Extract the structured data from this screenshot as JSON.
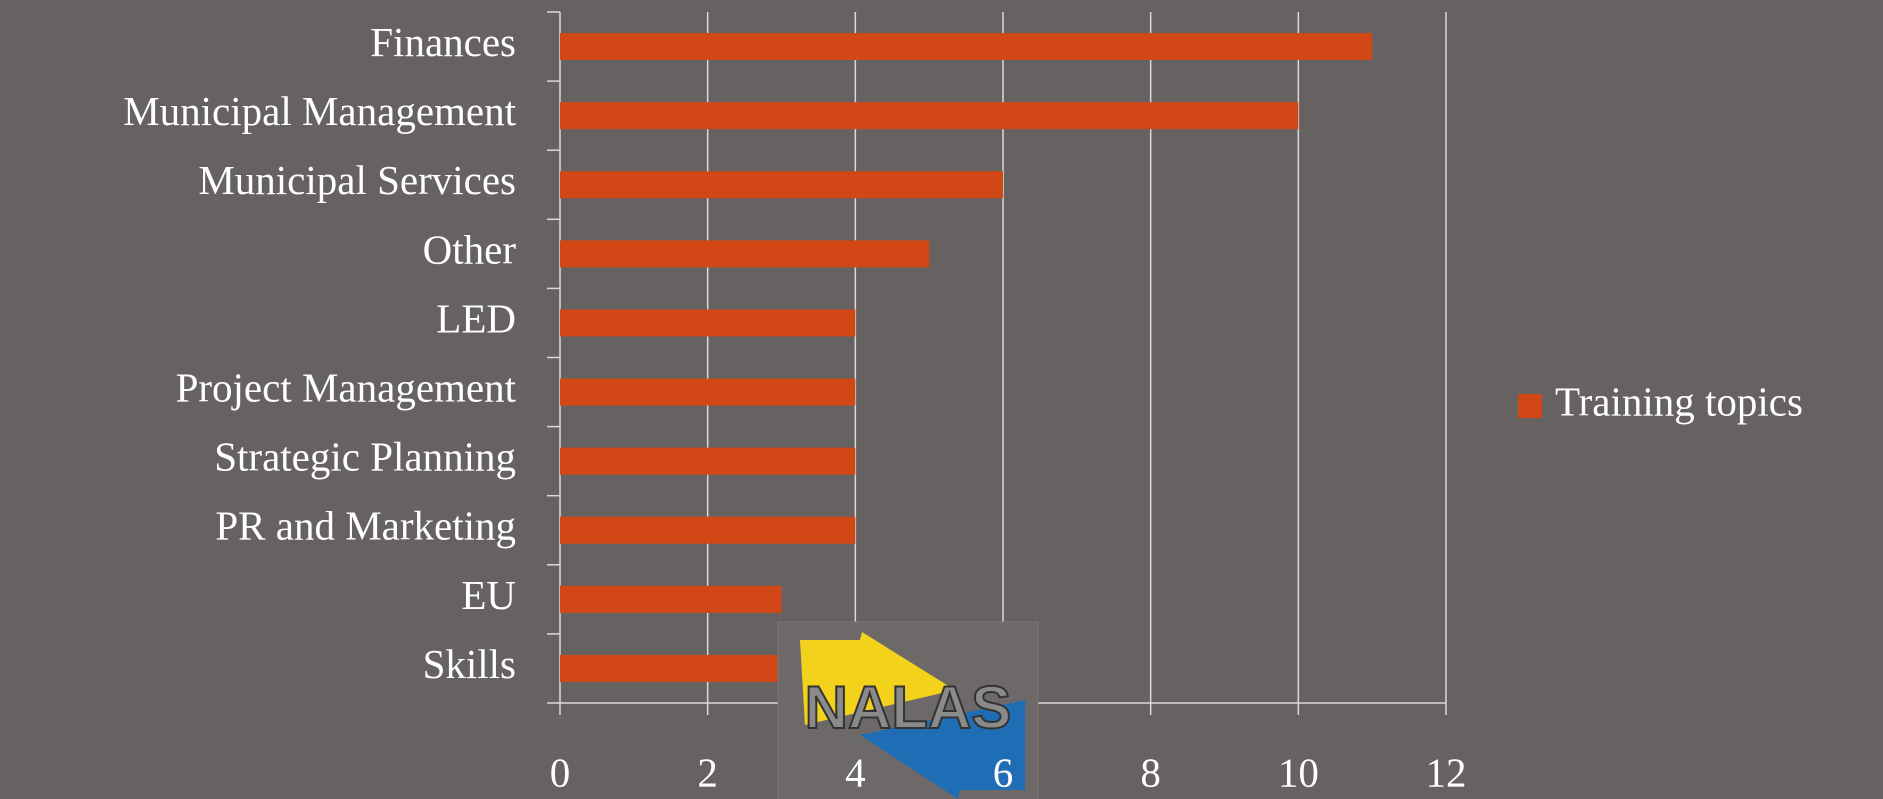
{
  "chart_data": {
    "type": "bar",
    "orientation": "horizontal",
    "categories": [
      "Finances",
      "Municipal Management",
      "Municipal Services",
      "Other",
      "LED",
      "Project Management",
      "Strategic Planning",
      "PR and Marketing",
      "EU",
      "Skills"
    ],
    "series": [
      {
        "name": "Training topics",
        "color": "#d14816",
        "values": [
          11,
          10,
          6,
          5,
          4,
          4,
          4,
          4,
          3,
          3
        ]
      }
    ],
    "xlim": [
      0,
      12
    ],
    "xticks": [
      0,
      2,
      4,
      6,
      8,
      10,
      12
    ],
    "grid": true,
    "legend": "right",
    "logo_text": "NALAS"
  }
}
